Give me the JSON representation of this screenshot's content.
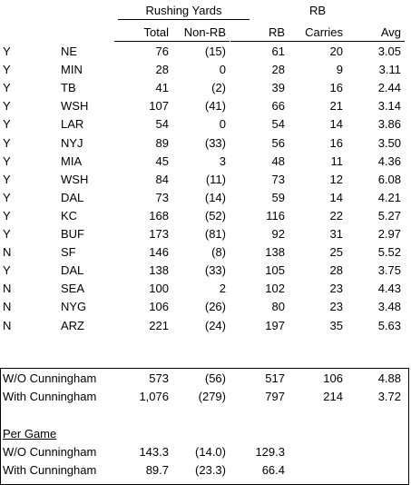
{
  "header": {
    "group_label": "Rushing Yards",
    "rb_label": "RB",
    "columns": [
      "Total",
      "Non-RB",
      "RB",
      "Carries",
      "Avg"
    ]
  },
  "rows": [
    [
      "Y",
      "NE",
      "76",
      "(15)",
      "61",
      "20",
      "3.05"
    ],
    [
      "Y",
      "MIN",
      "28",
      "0",
      "28",
      "9",
      "3.11"
    ],
    [
      "Y",
      "TB",
      "41",
      "(2)",
      "39",
      "16",
      "2.44"
    ],
    [
      "Y",
      "WSH",
      "107",
      "(41)",
      "66",
      "21",
      "3.14"
    ],
    [
      "Y",
      "LAR",
      "54",
      "0",
      "54",
      "14",
      "3.86"
    ],
    [
      "Y",
      "NYJ",
      "89",
      "(33)",
      "56",
      "16",
      "3.50"
    ],
    [
      "Y",
      "MIA",
      "45",
      "3",
      "48",
      "11",
      "4.36"
    ],
    [
      "Y",
      "WSH",
      "84",
      "(11)",
      "73",
      "12",
      "6.08"
    ],
    [
      "Y",
      "DAL",
      "73",
      "(14)",
      "59",
      "14",
      "4.21"
    ],
    [
      "Y",
      "KC",
      "168",
      "(52)",
      "116",
      "22",
      "5.27"
    ],
    [
      "Y",
      "BUF",
      "173",
      "(81)",
      "92",
      "31",
      "2.97"
    ],
    [
      "N",
      "SF",
      "146",
      "(8)",
      "138",
      "25",
      "5.52"
    ],
    [
      "Y",
      "DAL",
      "138",
      "(33)",
      "105",
      "28",
      "3.75"
    ],
    [
      "N",
      "SEA",
      "100",
      "2",
      "102",
      "23",
      "4.43"
    ],
    [
      "N",
      "NYG",
      "106",
      "(26)",
      "80",
      "23",
      "3.48"
    ],
    [
      "N",
      "ARZ",
      "221",
      "(24)",
      "197",
      "35",
      "5.63"
    ]
  ],
  "summary": {
    "rows": [
      [
        "W/O Cunningham",
        "573",
        "(56)",
        "517",
        "106",
        "4.88"
      ],
      [
        "With Cunningham",
        "1,076",
        "(279)",
        "797",
        "214",
        "3.72"
      ]
    ]
  },
  "per_game": {
    "label": "Per Game",
    "rows": [
      [
        "W/O Cunningham",
        "143.3",
        "(14.0)",
        "129.3"
      ],
      [
        "With Cunningham",
        "89.7",
        "(23.3)",
        "66.4"
      ]
    ]
  }
}
